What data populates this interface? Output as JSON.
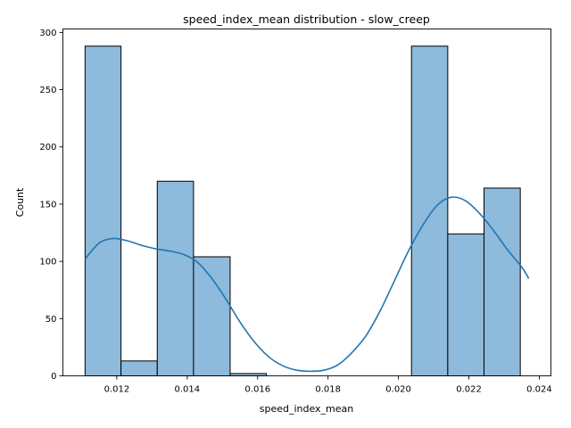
{
  "chart_data": {
    "type": "bar",
    "subtype": "histogram-with-kde",
    "title": "speed_index_mean distribution - slow_creep",
    "xlabel": "speed_index_mean",
    "ylabel": "Count",
    "xlim": [
      0.01047,
      0.02433
    ],
    "ylim": [
      0,
      303
    ],
    "xticks": [
      "0.012",
      "0.014",
      "0.016",
      "0.018",
      "0.020",
      "0.022",
      "0.024"
    ],
    "yticks": [
      "0",
      "50",
      "100",
      "150",
      "200",
      "250",
      "300"
    ],
    "bar_color": "#8ebadb",
    "line_color": "#1f77b4",
    "bins": [
      {
        "x0": 0.0111,
        "x1": 0.01212,
        "count": 288
      },
      {
        "x0": 0.01212,
        "x1": 0.01315,
        "count": 13
      },
      {
        "x0": 0.01315,
        "x1": 0.01418,
        "count": 170
      },
      {
        "x0": 0.01418,
        "x1": 0.01522,
        "count": 104
      },
      {
        "x0": 0.01522,
        "x1": 0.01625,
        "count": 2
      },
      {
        "x0": 0.01625,
        "x1": 0.01728,
        "count": 0
      },
      {
        "x0": 0.01728,
        "x1": 0.01831,
        "count": 0
      },
      {
        "x0": 0.01831,
        "x1": 0.01934,
        "count": 0
      },
      {
        "x0": 0.01934,
        "x1": 0.02037,
        "count": 0
      },
      {
        "x0": 0.02037,
        "x1": 0.0214,
        "count": 288
      },
      {
        "x0": 0.0214,
        "x1": 0.02243,
        "count": 124
      },
      {
        "x0": 0.02243,
        "x1": 0.02346,
        "count": 164
      }
    ],
    "kde": {
      "x": [
        0.0111,
        0.0115,
        0.0119,
        0.0123,
        0.0127,
        0.0131,
        0.0135,
        0.0139,
        0.0143,
        0.0147,
        0.0151,
        0.0155,
        0.0159,
        0.0163,
        0.0167,
        0.0171,
        0.0175,
        0.0179,
        0.0183,
        0.0187,
        0.0191,
        0.0195,
        0.0199,
        0.0203,
        0.0207,
        0.0211,
        0.0215,
        0.0219,
        0.0223,
        0.0227,
        0.0231,
        0.0235,
        0.0237
      ],
      "y": [
        102,
        116,
        120,
        118,
        114,
        111,
        109,
        106,
        99,
        85,
        67,
        47,
        30,
        17,
        9,
        5,
        4,
        5,
        10,
        21,
        36,
        58,
        84,
        110,
        132,
        149,
        156,
        153,
        142,
        127,
        110,
        95,
        85
      ]
    }
  }
}
